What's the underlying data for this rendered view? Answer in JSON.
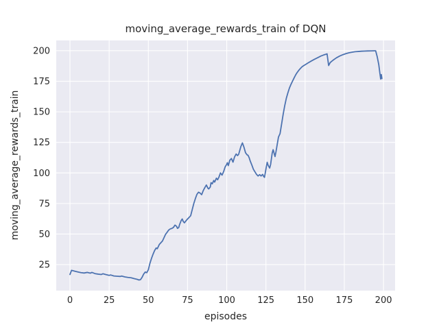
{
  "window": {
    "kind": "matplotlib-figure"
  },
  "colors": {
    "figure_background": "#ffffff",
    "axes_background": "#eaeaf2",
    "grid": "#ffffff",
    "line": "#4c72b0",
    "text": "#262626"
  },
  "chart_data": {
    "type": "line",
    "title": "moving_average_rewards_train of DQN",
    "xlabel": "episodes",
    "ylabel": "moving_average_rewards_train",
    "grid": true,
    "legend": null,
    "xlim": [
      -8.75,
      207.4
    ],
    "ylim": [
      3.7,
      208.4
    ],
    "xticks": [
      0,
      25,
      50,
      75,
      100,
      125,
      150,
      175,
      200
    ],
    "yticks": [
      25,
      50,
      75,
      100,
      125,
      150,
      175,
      200
    ],
    "series": [
      {
        "name": "moving_average_rewards_train of DQN",
        "color": "#4c72b0",
        "points": [
          [
            0,
            16.9
          ],
          [
            1,
            20.3
          ],
          [
            2,
            20.0
          ],
          [
            3,
            19.6
          ],
          [
            5,
            19.0
          ],
          [
            7,
            18.4
          ],
          [
            9,
            18.1
          ],
          [
            11,
            18.6
          ],
          [
            13,
            18.0
          ],
          [
            14,
            18.6
          ],
          [
            16,
            17.6
          ],
          [
            18,
            17.2
          ],
          [
            20,
            16.9
          ],
          [
            21,
            17.5
          ],
          [
            23,
            16.8
          ],
          [
            25,
            16.2
          ],
          [
            26,
            16.5
          ],
          [
            28,
            15.7
          ],
          [
            30,
            15.5
          ],
          [
            32,
            15.3
          ],
          [
            33,
            15.6
          ],
          [
            35,
            14.9
          ],
          [
            37,
            14.5
          ],
          [
            39,
            14.2
          ],
          [
            41,
            13.5
          ],
          [
            43,
            12.9
          ],
          [
            44,
            12.4
          ],
          [
            45,
            12.7
          ],
          [
            46,
            14.6
          ],
          [
            47,
            17.2
          ],
          [
            48,
            18.9
          ],
          [
            49,
            18.4
          ],
          [
            50,
            20.8
          ],
          [
            51,
            26.0
          ],
          [
            52,
            30.0
          ],
          [
            53,
            33.5
          ],
          [
            54,
            36.5
          ],
          [
            55,
            38.6
          ],
          [
            55.7,
            38.0
          ],
          [
            57,
            41.5
          ],
          [
            58,
            42.9
          ],
          [
            59,
            44.3
          ],
          [
            60,
            47.0
          ],
          [
            61,
            49.8
          ],
          [
            62,
            51.5
          ],
          [
            63,
            53.3
          ],
          [
            64,
            54.2
          ],
          [
            65,
            54.6
          ],
          [
            66,
            55.4
          ],
          [
            67,
            57.3
          ],
          [
            68,
            56.3
          ],
          [
            68.6,
            54.6
          ],
          [
            69.4,
            55.4
          ],
          [
            70,
            58.0
          ],
          [
            71,
            61.2
          ],
          [
            71.6,
            62.3
          ],
          [
            72.3,
            60.2
          ],
          [
            73,
            59.2
          ],
          [
            74,
            60.8
          ],
          [
            75,
            62.3
          ],
          [
            76,
            63.6
          ],
          [
            77,
            65.0
          ],
          [
            78,
            70.0
          ],
          [
            79,
            75.0
          ],
          [
            80,
            79.0
          ],
          [
            81,
            82.5
          ],
          [
            82,
            84.2
          ],
          [
            83,
            83.5
          ],
          [
            84,
            82.2
          ],
          [
            85,
            85.5
          ],
          [
            86,
            87.9
          ],
          [
            87,
            90.1
          ],
          [
            88,
            87.5
          ],
          [
            88.5,
            86.9
          ],
          [
            89.5,
            88.5
          ],
          [
            90,
            92.0
          ],
          [
            90.8,
            91.1
          ],
          [
            91.7,
            93.8
          ],
          [
            92.3,
            92.5
          ],
          [
            93.4,
            95.7
          ],
          [
            94.2,
            94.4
          ],
          [
            95,
            96.5
          ],
          [
            96,
            100.0
          ],
          [
            97,
            98.2
          ],
          [
            98,
            101.0
          ],
          [
            99,
            105.0
          ],
          [
            100,
            107.0
          ],
          [
            100.4,
            108.4
          ],
          [
            101,
            106.0
          ],
          [
            102,
            110.5
          ],
          [
            103,
            111.8
          ],
          [
            104,
            108.8
          ],
          [
            105,
            113.1
          ],
          [
            106,
            115.5
          ],
          [
            106.9,
            114.2
          ],
          [
            107.6,
            115.2
          ],
          [
            108,
            117.0
          ],
          [
            109,
            121.5
          ],
          [
            110,
            124.6
          ],
          [
            111,
            121.0
          ],
          [
            112,
            116.5
          ],
          [
            113,
            114.8
          ],
          [
            113.6,
            114.4
          ],
          [
            114.3,
            112.5
          ],
          [
            115,
            109.7
          ],
          [
            116,
            106.5
          ],
          [
            117,
            103.0
          ],
          [
            118,
            100.9
          ],
          [
            119,
            98.8
          ],
          [
            120,
            97.5
          ],
          [
            121,
            98.6
          ],
          [
            121.9,
            97.5
          ],
          [
            122.9,
            98.8
          ],
          [
            123.5,
            97.2
          ],
          [
            124.1,
            96.4
          ],
          [
            125,
            103.1
          ],
          [
            125.8,
            108.7
          ],
          [
            126.4,
            106.3
          ],
          [
            127.4,
            104.0
          ],
          [
            128,
            107.0
          ],
          [
            129,
            116.2
          ],
          [
            129.6,
            119.0
          ],
          [
            130.2,
            116.2
          ],
          [
            130.8,
            113.4
          ],
          [
            131.4,
            117.2
          ],
          [
            132,
            121.8
          ],
          [
            133,
            129.3
          ],
          [
            134,
            132.1
          ],
          [
            135,
            140.0
          ],
          [
            136,
            148.0
          ],
          [
            137,
            155.0
          ],
          [
            138,
            161.0
          ],
          [
            139,
            165.5
          ],
          [
            140,
            169.5
          ],
          [
            141,
            172.5
          ],
          [
            142,
            175.2
          ],
          [
            143,
            177.8
          ],
          [
            144,
            180.3
          ],
          [
            145,
            182.3
          ],
          [
            146,
            184.0
          ],
          [
            147,
            185.5
          ],
          [
            148,
            186.8
          ],
          [
            149,
            187.7
          ],
          [
            150,
            188.5
          ],
          [
            152,
            190.1
          ],
          [
            154,
            191.6
          ],
          [
            156,
            193.0
          ],
          [
            158,
            194.3
          ],
          [
            160,
            195.6
          ],
          [
            161,
            196.1
          ],
          [
            162,
            196.6
          ],
          [
            163,
            197.0
          ],
          [
            164,
            197.4
          ],
          [
            165,
            187.9
          ],
          [
            166,
            190.3
          ],
          [
            167,
            191.4
          ],
          [
            168,
            192.4
          ],
          [
            170,
            194.2
          ],
          [
            172,
            195.6
          ],
          [
            174,
            196.7
          ],
          [
            176,
            197.6
          ],
          [
            178,
            198.3
          ],
          [
            180,
            198.8
          ],
          [
            182,
            199.2
          ],
          [
            184,
            199.4
          ],
          [
            186,
            199.6
          ],
          [
            188,
            199.7
          ],
          [
            190,
            199.8
          ],
          [
            192,
            199.85
          ],
          [
            194,
            199.9
          ],
          [
            195,
            199.9
          ],
          [
            196,
            195.0
          ],
          [
            197,
            188.5
          ],
          [
            197.7,
            181.5
          ],
          [
            198.2,
            176.8
          ],
          [
            198.6,
            180.5
          ],
          [
            199,
            177.2
          ]
        ]
      }
    ]
  }
}
